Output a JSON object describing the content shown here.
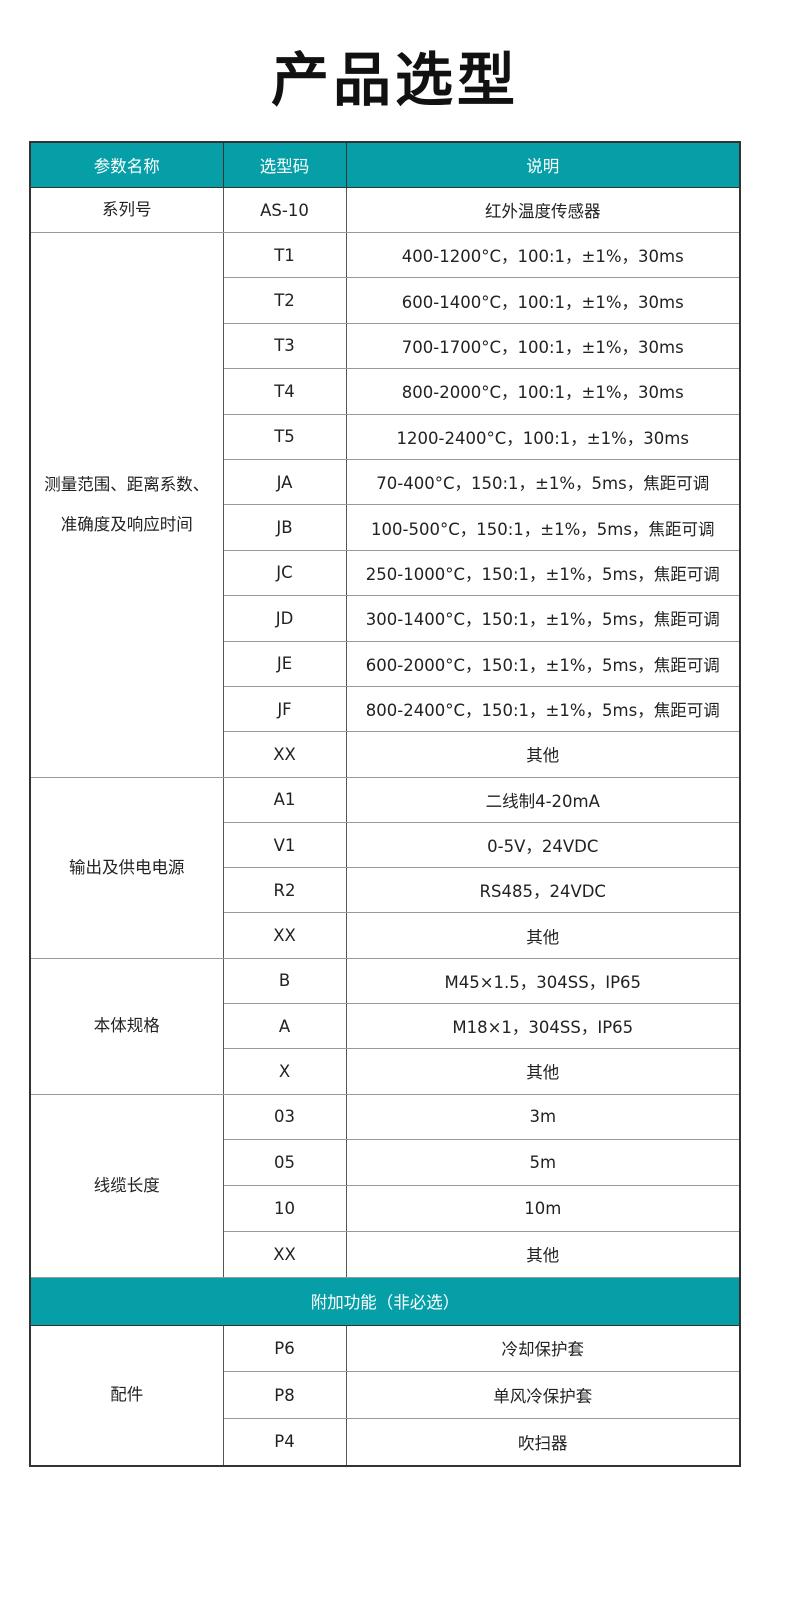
{
  "page_title": "产品选型",
  "theme_color": "#069fa8",
  "table": {
    "headers": [
      "参数名称",
      "选型码",
      "说明"
    ],
    "groups": [
      {
        "name": "系列号",
        "rows": [
          {
            "code": "AS-10",
            "desc": "红外温度传感器"
          }
        ]
      },
      {
        "name_lines": [
          "测量范围、距离系数、",
          "准确度及响应时间"
        ],
        "rows": [
          {
            "code": "T1",
            "desc": "400-1200°C，100:1，±1%，30ms"
          },
          {
            "code": "T2",
            "desc": "600-1400°C，100:1，±1%，30ms"
          },
          {
            "code": "T3",
            "desc": "700-1700°C，100:1，±1%，30ms"
          },
          {
            "code": "T4",
            "desc": "800-2000°C，100:1，±1%，30ms"
          },
          {
            "code": "T5",
            "desc": "1200-2400°C，100:1，±1%，30ms"
          },
          {
            "code": "JA",
            "desc": "70-400°C，150:1，±1%，5ms，焦距可调"
          },
          {
            "code": "JB",
            "desc": "100-500°C，150:1，±1%，5ms，焦距可调"
          },
          {
            "code": "JC",
            "desc": "250-1000°C，150:1，±1%，5ms，焦距可调"
          },
          {
            "code": "JD",
            "desc": "300-1400°C，150:1，±1%，5ms，焦距可调"
          },
          {
            "code": "JE",
            "desc": "600-2000°C，150:1，±1%，5ms，焦距可调"
          },
          {
            "code": "JF",
            "desc": "800-2400°C，150:1，±1%，5ms，焦距可调"
          },
          {
            "code": "XX",
            "desc": "其他"
          }
        ]
      },
      {
        "name": "输出及供电电源",
        "rows": [
          {
            "code": "A1",
            "desc": "二线制4-20mA"
          },
          {
            "code": "V1",
            "desc": "0-5V，24VDC"
          },
          {
            "code": "R2",
            "desc": "RS485，24VDC"
          },
          {
            "code": "XX",
            "desc": "其他"
          }
        ]
      },
      {
        "name": "本体规格",
        "rows": [
          {
            "code": "B",
            "desc": "M45×1.5，304SS，IP65"
          },
          {
            "code": "A",
            "desc": "M18×1，304SS，IP65"
          },
          {
            "code": "X",
            "desc": "其他"
          }
        ]
      },
      {
        "name": "线缆长度",
        "rows": [
          {
            "code": "03",
            "desc": "3m"
          },
          {
            "code": "05",
            "desc": "5m"
          },
          {
            "code": "10",
            "desc": "10m"
          },
          {
            "code": "XX",
            "desc": "其他"
          }
        ]
      },
      {
        "section_header": "附加功能（非必选）"
      },
      {
        "name": "配件",
        "rows": [
          {
            "code": "P6",
            "desc": "冷却保护套"
          },
          {
            "code": "P8",
            "desc": "单风冷保护套"
          },
          {
            "code": "P4",
            "desc": "吹扫器"
          }
        ]
      }
    ]
  }
}
